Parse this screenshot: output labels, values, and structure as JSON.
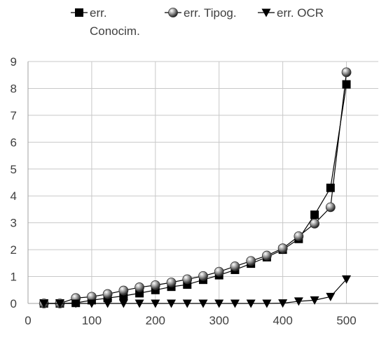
{
  "chart_data": {
    "type": "line",
    "title": "",
    "xlabel": "",
    "ylabel": "",
    "xlim": [
      0,
      550
    ],
    "ylim": [
      0,
      9
    ],
    "xticks": [
      0,
      100,
      200,
      300,
      400,
      500
    ],
    "yticks": [
      0,
      1,
      2,
      3,
      4,
      5,
      6,
      7,
      8,
      9
    ],
    "grid": {
      "horizontal": true,
      "vertical": true
    },
    "legend_position": "top",
    "series": [
      {
        "name": "err. Conocim.",
        "legend_lines": [
          "err.",
          "Conocim."
        ],
        "marker": "square",
        "color": "#000000",
        "x": [
          25,
          50,
          75,
          100,
          125,
          150,
          175,
          200,
          225,
          250,
          275,
          300,
          325,
          350,
          375,
          400,
          425,
          450,
          475,
          500
        ],
        "y": [
          0.0,
          0.0,
          0.02,
          0.12,
          0.2,
          0.28,
          0.38,
          0.5,
          0.62,
          0.7,
          0.88,
          1.05,
          1.25,
          1.48,
          1.72,
          2.0,
          2.4,
          3.3,
          4.3,
          8.15
        ]
      },
      {
        "name": "err. Tipog.",
        "legend_lines": [
          "err. Tipog."
        ],
        "marker": "sphere",
        "color": "#808080",
        "x": [
          25,
          50,
          75,
          100,
          125,
          150,
          175,
          200,
          225,
          250,
          275,
          300,
          325,
          350,
          375,
          400,
          425,
          450,
          475,
          500
        ],
        "y": [
          0.0,
          0.0,
          0.2,
          0.25,
          0.35,
          0.48,
          0.6,
          0.68,
          0.78,
          0.9,
          1.02,
          1.18,
          1.38,
          1.58,
          1.78,
          2.05,
          2.5,
          2.97,
          3.58,
          8.6
        ]
      },
      {
        "name": "err. OCR",
        "legend_lines": [
          "err. OCR"
        ],
        "marker": "triangle-down",
        "color": "#000000",
        "x": [
          25,
          50,
          75,
          100,
          125,
          150,
          175,
          200,
          225,
          250,
          275,
          300,
          325,
          350,
          375,
          400,
          425,
          450,
          475,
          500
        ],
        "y": [
          0,
          0,
          0,
          0,
          0,
          0,
          0,
          0,
          0,
          0,
          0,
          0,
          0,
          0,
          0,
          0.01,
          0.08,
          0.12,
          0.25,
          0.9
        ]
      }
    ]
  }
}
